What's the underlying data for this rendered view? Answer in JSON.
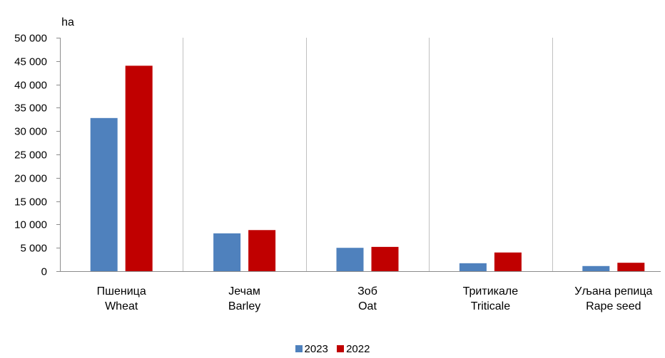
{
  "chart_data": {
    "type": "bar",
    "unit_label": "ha",
    "categories": [
      [
        "Пшеница",
        "Wheat"
      ],
      [
        "Јечам",
        "Barley"
      ],
      [
        "Зоб",
        "Oat"
      ],
      [
        "Тритикале",
        "Triticale"
      ],
      [
        "Уљана репица",
        "Rape seed"
      ]
    ],
    "series": [
      {
        "name": "2023",
        "color": "#4f81bd",
        "values": [
          32800,
          8100,
          5000,
          1700,
          1100
        ]
      },
      {
        "name": "2022",
        "color": "#c00000",
        "values": [
          44000,
          8800,
          5200,
          4000,
          1800
        ]
      }
    ],
    "ylim": [
      0,
      50000
    ],
    "yticks": [
      0,
      5000,
      10000,
      15000,
      20000,
      25000,
      30000,
      35000,
      40000,
      45000,
      50000
    ],
    "ytick_labels": [
      "0",
      "5 000",
      "10 000",
      "15 000",
      "20 000",
      "25 000",
      "30 000",
      "35 000",
      "40 000",
      "45 000",
      "50 000"
    ],
    "grid": "vertical separators",
    "legend_position": "bottom-center"
  }
}
